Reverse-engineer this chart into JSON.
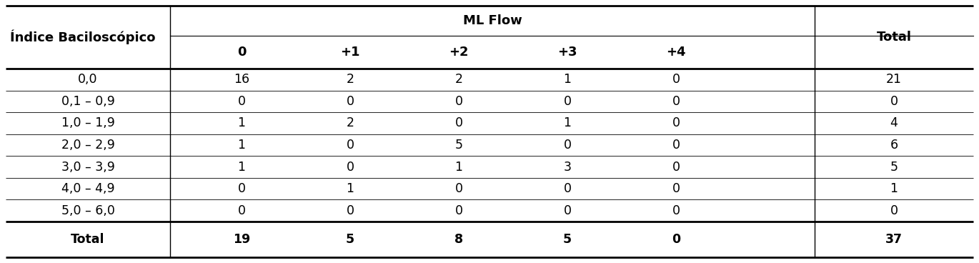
{
  "header_main": "ML Flow",
  "header_left": "Índice Baciloscópico",
  "header_right": "Total",
  "sub_headers": [
    "0",
    "+1",
    "+2",
    "+3",
    "+4"
  ],
  "rows": [
    [
      "0,0",
      "16",
      "2",
      "2",
      "1",
      "0",
      "21"
    ],
    [
      "0,1 – 0,9",
      "0",
      "0",
      "0",
      "0",
      "0",
      "0"
    ],
    [
      "1,0 – 1,9",
      "1",
      "2",
      "0",
      "1",
      "0",
      "4"
    ],
    [
      "2,0 – 2,9",
      "1",
      "0",
      "5",
      "0",
      "0",
      "6"
    ],
    [
      "3,0 – 3,9",
      "1",
      "0",
      "1",
      "3",
      "0",
      "5"
    ],
    [
      "4,0 – 4,9",
      "0",
      "1",
      "0",
      "0",
      "0",
      "1"
    ],
    [
      "5,0 – 6,0",
      "0",
      "0",
      "0",
      "0",
      "0",
      "0"
    ]
  ],
  "total_row": [
    "Total",
    "19",
    "5",
    "8",
    "5",
    "0",
    "37"
  ],
  "background_color": "#ffffff",
  "line_color": "#000000",
  "font_size": 12.5
}
